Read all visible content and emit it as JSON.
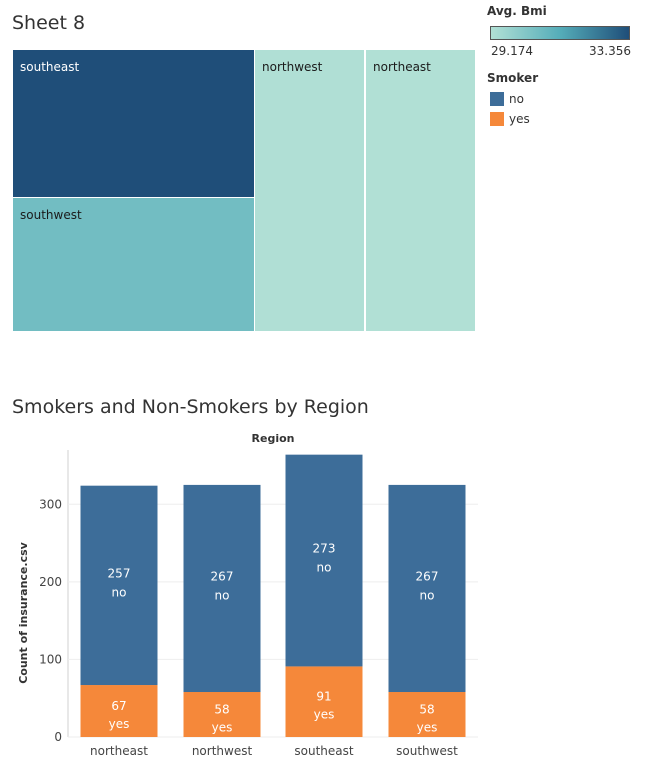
{
  "sheet_title": "Sheet 8",
  "bar_title": "Smokers and Non-Smokers by Region",
  "legend": {
    "color_title": "Avg. Bmi",
    "color_min": "29.174",
    "color_max": "33.356",
    "gradient_start": "#b1e0d5",
    "gradient_end": "#1f4e79",
    "smoker_title": "Smoker",
    "items": [
      {
        "label": "no",
        "color": "#3d6d99"
      },
      {
        "label": "yes",
        "color": "#f5883a"
      }
    ]
  },
  "colors": {
    "no": "#3d6d99",
    "yes": "#f5883a",
    "treemap_dark": "#1f4e79",
    "treemap_mid": "#55adb9",
    "treemap_light": "#b1e0d5"
  },
  "chart_data": [
    {
      "type": "heatmap",
      "title": "Sheet 8",
      "color_field": "Avg. Bmi",
      "color_range": [
        29.174,
        33.356
      ],
      "cells": [
        {
          "label": "southeast",
          "size": 364,
          "color_value": 33.356
        },
        {
          "label": "southwest",
          "size": 325,
          "color_value": 30.6
        },
        {
          "label": "northwest",
          "size": 325,
          "color_value": 29.2
        },
        {
          "label": "northeast",
          "size": 324,
          "color_value": 29.174
        }
      ]
    },
    {
      "type": "bar",
      "title": "Smokers and Non-Smokers by Region",
      "xlabel": "Region",
      "ylabel": "Count of insurance.csv",
      "categories": [
        "northeast",
        "northwest",
        "southeast",
        "southwest"
      ],
      "series": [
        {
          "name": "yes",
          "values": [
            67,
            58,
            91,
            58
          ]
        },
        {
          "name": "no",
          "values": [
            257,
            267,
            273,
            267
          ]
        }
      ],
      "yticks": [
        0,
        100,
        200,
        300
      ],
      "ylim": [
        0,
        370
      ],
      "stacked": true,
      "legend": "right"
    }
  ]
}
